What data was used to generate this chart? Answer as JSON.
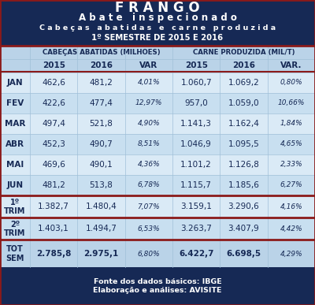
{
  "title1": "F R A N G O",
  "title2": "A b a t e   i n s p e c i o n a d o",
  "title3": "C a b e ç a s   a b a t i d a s   e   c a r n e   p r o d u z i d a",
  "title4": "1º SEMESTRE DE 2015 E 2016",
  "header1": "CABEÇAS ABATIDAS (MILHOES)",
  "header2": "CARNE PRODUZIDA (MIL/T)",
  "col_headers": [
    "2015",
    "2016",
    "VAR",
    "2015",
    "2016",
    "VAR."
  ],
  "row_labels": [
    "JAN",
    "FEV",
    "MAR",
    "ABR",
    "MAI",
    "JUN",
    "1º\nTRIM",
    "2º\nTRIM",
    "TOT\nSEM"
  ],
  "data": [
    [
      "462,6",
      "481,2",
      "4,01%",
      "1.060,7",
      "1.069,2",
      "0,80%"
    ],
    [
      "422,6",
      "477,4",
      "12,97%",
      "957,0",
      "1.059,0",
      "10,66%"
    ],
    [
      "497,4",
      "521,8",
      "4,90%",
      "1.141,3",
      "1.162,4",
      "1,84%"
    ],
    [
      "452,3",
      "490,7",
      "8,51%",
      "1.046,9",
      "1.095,5",
      "4,65%"
    ],
    [
      "469,6",
      "490,1",
      "4,36%",
      "1.101,2",
      "1.126,8",
      "2,33%"
    ],
    [
      "481,2",
      "513,8",
      "6,78%",
      "1.115,7",
      "1.185,6",
      "6,27%"
    ],
    [
      "1.382,7",
      "1.480,4",
      "7,07%",
      "3.159,1",
      "3.290,6",
      "4,16%"
    ],
    [
      "1.403,1",
      "1.494,7",
      "6,53%",
      "3.263,7",
      "3.407,9",
      "4,42%"
    ],
    [
      "2.785,8",
      "2.975,1",
      "6,80%",
      "6.422,7",
      "6.698,5",
      "4,29%"
    ]
  ],
  "footer": "Fonte dos dados básicos: IBGE\nElaboração e análises: AVISITE",
  "header_bg": "#162955",
  "header_text": "#ffffff",
  "subheader_bg": "#bad3e8",
  "row_bg_light": "#daeaf6",
  "row_bg_alt": "#c8dff0",
  "border_color": "#8b1a1a",
  "text_color": "#162955",
  "footer_bg": "#162955",
  "footer_text": "#ffffff",
  "grid_color": "#a0c0d8"
}
